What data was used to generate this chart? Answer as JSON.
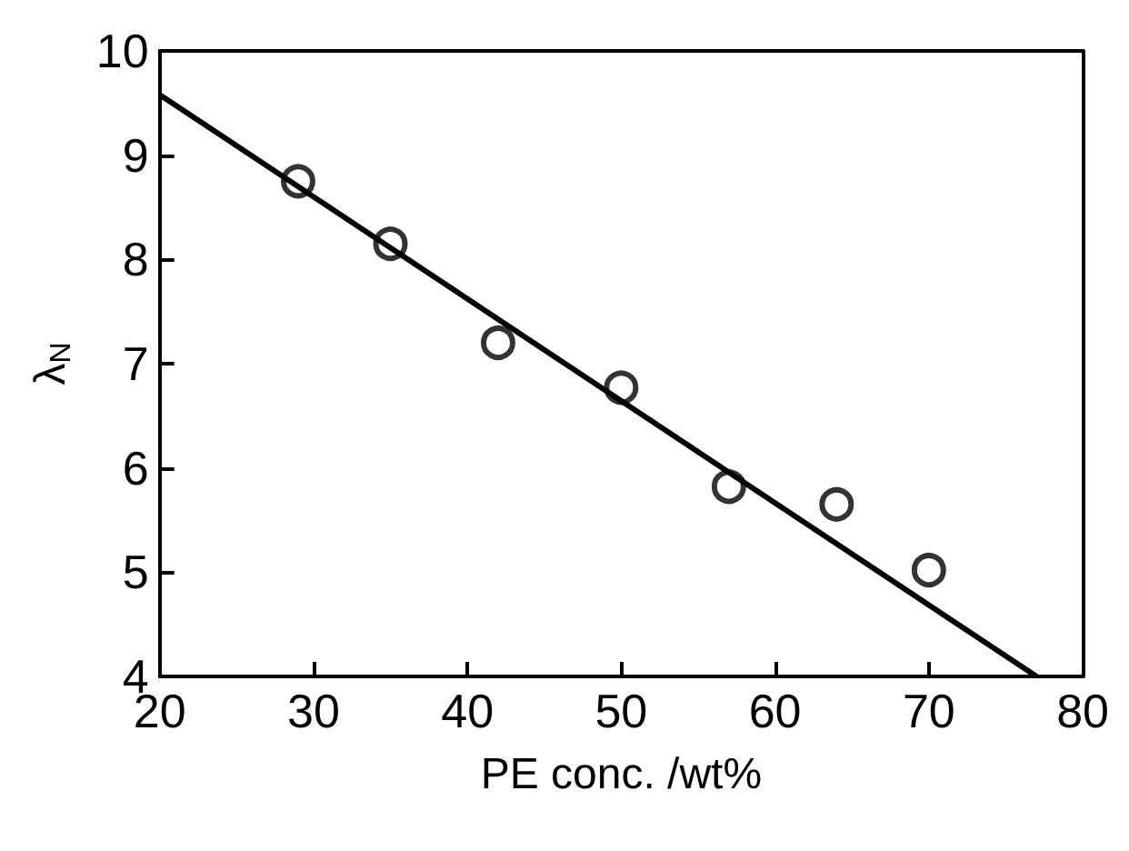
{
  "chart_data": {
    "type": "scatter",
    "xlabel": "PE conc. /wt%",
    "ylabel": "λ$_{N}$",
    "xlim": [
      20,
      80
    ],
    "xticks": [
      20,
      30,
      40,
      50,
      60,
      70,
      80
    ],
    "ylim": [
      4,
      10
    ],
    "yticks": [
      4,
      5,
      6,
      7,
      8,
      9,
      10
    ],
    "grid": false,
    "marker": "circle",
    "series": [
      {
        "color": "#000000",
        "x": [
          29,
          35,
          42,
          50,
          57,
          64,
          70
        ],
        "values": [
          8.75,
          8.15,
          7.2,
          6.77,
          5.82,
          5.65,
          5.02
        ]
      },
      {
        "type": "line",
        "color": "#000000",
        "line_style": "solid",
        "marker": "none",
        "x": [
          20,
          77
        ],
        "values": [
          9.58,
          4.0
        ]
      }
    ]
  }
}
